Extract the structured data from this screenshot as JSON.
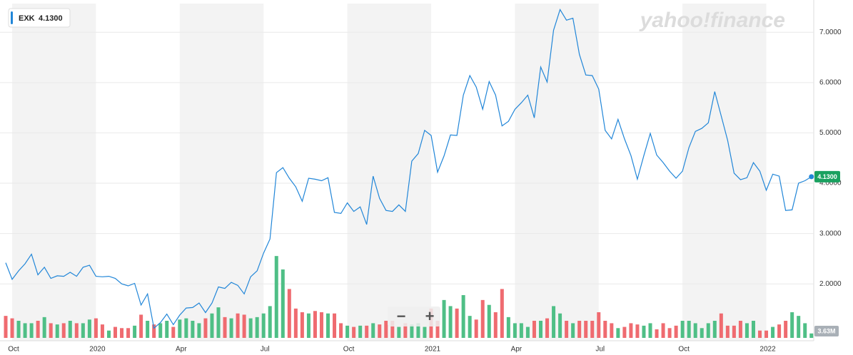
{
  "chart_data": {
    "type": "line",
    "watermark": "yahoo!finance",
    "controls": [
      "−",
      "+"
    ],
    "categories": [
      null,
      "Oct",
      null,
      null,
      null,
      null,
      null,
      null,
      null,
      null,
      null,
      null,
      null,
      null,
      "2020",
      null,
      null,
      null,
      null,
      null,
      null,
      null,
      null,
      null,
      null,
      null,
      null,
      "Apr",
      null,
      null,
      null,
      null,
      null,
      null,
      null,
      null,
      null,
      null,
      null,
      null,
      "Jul",
      null,
      null,
      null,
      null,
      null,
      null,
      null,
      null,
      null,
      null,
      null,
      null,
      "Oct",
      null,
      null,
      null,
      null,
      null,
      null,
      null,
      null,
      null,
      null,
      null,
      null,
      "2021",
      null,
      null,
      null,
      null,
      null,
      null,
      null,
      null,
      null,
      null,
      null,
      null,
      "Apr",
      null,
      null,
      null,
      null,
      null,
      null,
      null,
      null,
      null,
      null,
      null,
      null,
      "Jul",
      null,
      null,
      null,
      null,
      null,
      null,
      null,
      null,
      null,
      null,
      null,
      null,
      "Oct",
      null,
      null,
      null,
      null,
      null,
      null,
      null,
      null,
      null,
      null,
      null,
      null,
      "2022",
      null,
      null,
      null,
      null,
      null,
      null,
      null
    ],
    "series": [
      {
        "name": "EXK",
        "color": "#2186d8",
        "values": [
          2.42,
          2.09,
          2.26,
          2.4,
          2.59,
          2.18,
          2.33,
          2.11,
          2.16,
          2.15,
          2.23,
          2.15,
          2.33,
          2.37,
          2.15,
          2.14,
          2.15,
          2.11,
          2.0,
          1.96,
          2.01,
          1.58,
          1.8,
          1.12,
          1.23,
          1.4,
          1.19,
          1.38,
          1.52,
          1.53,
          1.62,
          1.43,
          1.62,
          1.94,
          1.91,
          2.03,
          1.97,
          1.8,
          2.14,
          2.26,
          2.61,
          2.89,
          4.21,
          4.31,
          4.1,
          3.93,
          3.64,
          4.1,
          4.08,
          4.05,
          4.11,
          3.42,
          3.4,
          3.61,
          3.44,
          3.53,
          3.18,
          4.14,
          3.7,
          3.46,
          3.44,
          3.57,
          3.44,
          4.44,
          4.59,
          5.05,
          4.95,
          4.22,
          4.54,
          4.96,
          4.95,
          5.75,
          6.14,
          5.91,
          5.47,
          6.02,
          5.75,
          5.14,
          5.23,
          5.47,
          5.6,
          5.75,
          5.3,
          6.31,
          6.01,
          7.04,
          7.45,
          7.24,
          7.28,
          6.56,
          6.15,
          6.14,
          5.87,
          5.05,
          4.88,
          5.27,
          4.88,
          4.55,
          4.08,
          4.55,
          4.99,
          4.56,
          4.41,
          4.24,
          4.1,
          4.24,
          4.71,
          5.03,
          5.09,
          5.2,
          5.82,
          5.34,
          4.85,
          4.2,
          4.07,
          4.11,
          4.41,
          4.24,
          3.86,
          4.18,
          4.14,
          3.46,
          3.47,
          4.0,
          4.05,
          4.13
        ]
      }
    ],
    "last_price": {
      "value": 4.13,
      "label": "4.1300"
    },
    "tag_color": "#1aa160",
    "ylim": [
      0.87,
      7.57
    ],
    "yticks": [
      {
        "value": 2,
        "label": "2.0000"
      },
      {
        "value": 3,
        "label": "3.0000"
      },
      {
        "value": 4,
        "label": "4.0000"
      },
      {
        "value": 5,
        "label": "5.0000"
      },
      {
        "value": 6,
        "label": "6.0000"
      },
      {
        "value": 7,
        "label": "7.0000"
      }
    ],
    "grid": true,
    "volume": {
      "values": [
        18,
        16,
        14,
        12,
        12,
        14,
        17,
        12,
        11,
        12,
        14,
        12,
        12,
        15,
        16,
        11,
        6,
        9,
        8,
        8,
        10,
        19,
        14,
        11,
        12,
        14,
        9,
        15,
        16,
        14,
        12,
        16,
        20,
        25,
        17,
        16,
        20,
        19,
        16,
        17,
        20,
        26,
        67,
        56,
        40,
        24,
        21,
        20,
        22,
        21,
        20,
        20,
        12,
        10,
        9,
        10,
        10,
        12,
        11,
        14,
        14,
        9,
        12,
        11,
        12,
        9,
        24,
        14,
        31,
        26,
        24,
        35,
        18,
        15,
        31,
        27,
        21,
        40,
        17,
        12,
        12,
        9,
        14,
        14,
        16,
        26,
        20,
        14,
        12,
        14,
        14,
        14,
        21,
        14,
        12,
        8,
        9,
        12,
        11,
        10,
        12,
        7,
        12,
        8,
        10,
        14,
        14,
        12,
        8,
        12,
        14,
        20,
        10,
        10,
        14,
        12,
        14,
        6,
        6,
        9,
        11,
        14,
        21,
        18,
        12,
        3.63
      ],
      "value_labels_last": "3.63M",
      "up_color": "#4fbf86",
      "down_color": "#ef6b70",
      "lim": [
        0,
        70
      ]
    }
  }
}
